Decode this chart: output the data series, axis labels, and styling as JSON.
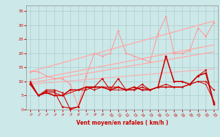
{
  "xlabel": "Vent moyen/en rafales ( km/h )",
  "xlim": [
    -0.5,
    23.5
  ],
  "ylim": [
    0,
    37
  ],
  "yticks": [
    0,
    5,
    10,
    15,
    20,
    25,
    30,
    35
  ],
  "xticks": [
    0,
    1,
    2,
    3,
    4,
    5,
    6,
    7,
    8,
    9,
    10,
    11,
    12,
    13,
    14,
    15,
    16,
    17,
    18,
    19,
    20,
    21,
    22,
    23
  ],
  "bg_color": "#cce8e8",
  "grid_color": "#aacccc",
  "line_trend1": {
    "x": [
      0,
      23
    ],
    "y": [
      13.5,
      31.5
    ],
    "color": "#ffaaaa",
    "lw": 1.0
  },
  "line_trend2": {
    "x": [
      0,
      23
    ],
    "y": [
      10.5,
      23.0
    ],
    "color": "#ffaaaa",
    "lw": 1.0
  },
  "line_trend3": {
    "x": [
      0,
      23
    ],
    "y": [
      9.5,
      20.5
    ],
    "color": "#ffaaaa",
    "lw": 1.0
  },
  "line_trend4": {
    "x": [
      0,
      23
    ],
    "y": [
      9.0,
      14.5
    ],
    "color": "#ffaaaa",
    "lw": 0.8
  },
  "series_rafales": {
    "x": [
      0,
      1,
      2,
      3,
      4,
      5,
      6,
      7,
      8,
      9,
      10,
      11,
      12,
      13,
      14,
      15,
      16,
      17,
      18,
      19,
      20,
      21,
      22,
      23
    ],
    "y": [
      13.5,
      13.5,
      12,
      11,
      11,
      9,
      1,
      12,
      20,
      19,
      20,
      28,
      20,
      19,
      18,
      17,
      27,
      33,
      20,
      20,
      21,
      29,
      26,
      31
    ],
    "color": "#ff9999",
    "lw": 0.8,
    "marker": "D",
    "ms": 1.8
  },
  "series_moyen": {
    "x": [
      0,
      1,
      2,
      3,
      4,
      5,
      6,
      7,
      8,
      9,
      10,
      11,
      12,
      13,
      14,
      15,
      16,
      17,
      18,
      19,
      20,
      21,
      22,
      23
    ],
    "y": [
      9.5,
      5,
      6.5,
      6.5,
      1,
      0.5,
      1,
      8,
      8,
      11,
      7,
      11,
      7,
      7,
      9,
      7,
      8,
      8,
      8,
      8,
      9,
      12,
      14,
      2.5
    ],
    "color": "#cc0000",
    "lw": 0.8,
    "marker": "D",
    "ms": 1.8
  },
  "series_moy2": {
    "x": [
      0,
      1,
      2,
      3,
      4,
      5,
      6,
      7,
      8,
      9,
      10,
      11,
      12,
      13,
      14,
      15,
      16,
      17,
      18,
      19,
      20,
      21,
      22,
      23
    ],
    "y": [
      10,
      5,
      7,
      7,
      6,
      0,
      1,
      8,
      7,
      8,
      8,
      8,
      7,
      7,
      8,
      7,
      8,
      9,
      8,
      8,
      9,
      10,
      10,
      7
    ],
    "color": "#cc0000",
    "lw": 0.8,
    "marker": "D",
    "ms": 1.5
  },
  "series_min": {
    "x": [
      0,
      1,
      2,
      3,
      4,
      5,
      6,
      7,
      8,
      9,
      10,
      11,
      12,
      13,
      14,
      15,
      16,
      17,
      18,
      19,
      20,
      21,
      22,
      23
    ],
    "y": [
      9,
      5,
      6,
      5,
      5,
      7,
      7,
      8,
      8,
      8,
      7,
      8,
      7,
      8,
      7,
      7,
      8,
      19,
      10,
      10,
      9,
      12,
      13,
      2
    ],
    "color": "#cc0000",
    "lw": 1.2,
    "marker": "D",
    "ms": 2.0
  },
  "series_low": {
    "x": [
      0,
      1,
      2,
      3,
      4,
      5,
      6,
      7,
      8,
      9,
      10,
      11,
      12,
      13,
      14,
      15,
      16,
      17,
      18,
      19,
      20,
      21,
      22,
      23
    ],
    "y": [
      9,
      5,
      6,
      6,
      5,
      6,
      7,
      7,
      8,
      8,
      7,
      7,
      7,
      7,
      8,
      7,
      8,
      8,
      8,
      8,
      9,
      10,
      9,
      3
    ],
    "color": "#cc0000",
    "lw": 0.7,
    "marker": "D",
    "ms": 1.2
  }
}
